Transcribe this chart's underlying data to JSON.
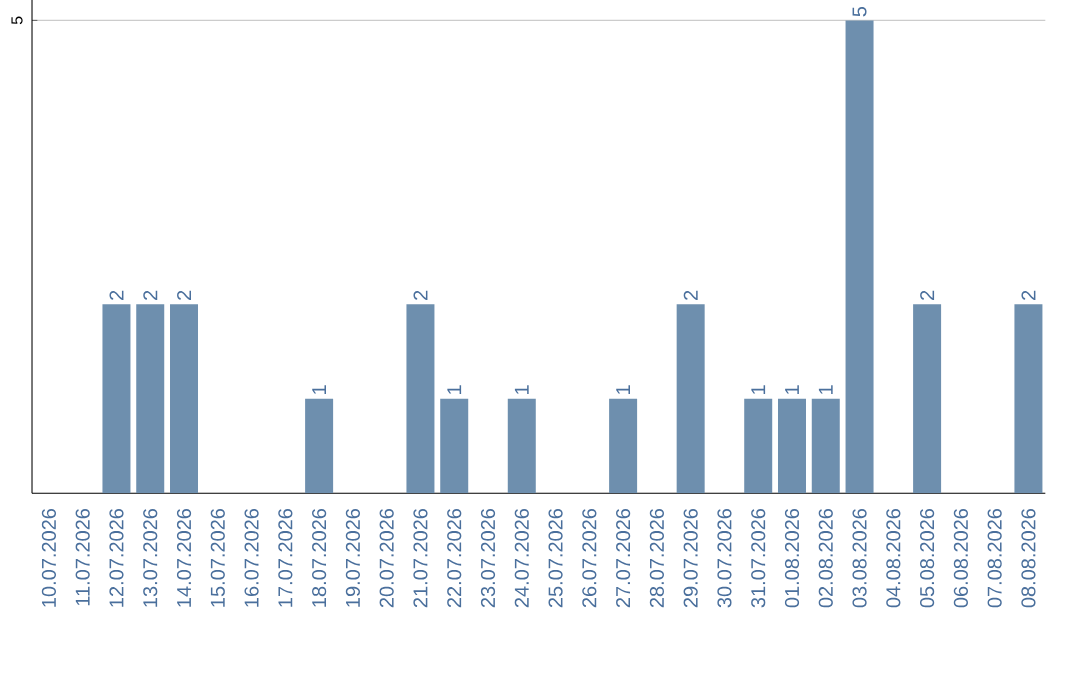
{
  "chart_data": {
    "type": "bar",
    "categories": [
      "10.07.2026",
      "11.07.2026",
      "12.07.2026",
      "13.07.2026",
      "14.07.2026",
      "15.07.2026",
      "16.07.2026",
      "17.07.2026",
      "18.07.2026",
      "19.07.2026",
      "20.07.2026",
      "21.07.2026",
      "22.07.2026",
      "23.07.2026",
      "24.07.2026",
      "25.07.2026",
      "26.07.2026",
      "27.07.2026",
      "28.07.2026",
      "29.07.2026",
      "30.07.2026",
      "31.07.2026",
      "01.08.2026",
      "02.08.2026",
      "03.08.2026",
      "04.08.2026",
      "05.08.2026",
      "06.08.2026",
      "07.08.2026",
      "08.08.2026"
    ],
    "values": [
      0,
      0,
      2,
      2,
      2,
      0,
      0,
      0,
      1,
      0,
      0,
      2,
      1,
      0,
      1,
      0,
      0,
      1,
      0,
      2,
      0,
      1,
      1,
      1,
      5,
      0,
      2,
      0,
      0,
      2
    ],
    "value_labels": [
      null,
      null,
      "2",
      "2",
      "2",
      null,
      null,
      null,
      "1",
      null,
      null,
      "2",
      "1",
      null,
      "1",
      null,
      null,
      "1",
      null,
      "2",
      null,
      "1",
      "1",
      "1",
      "5",
      null,
      "2",
      null,
      null,
      "2"
    ],
    "color": "#6e8fae",
    "ylim": [
      0,
      5.3
    ],
    "yticks": [
      5
    ],
    "grid": "y"
  }
}
